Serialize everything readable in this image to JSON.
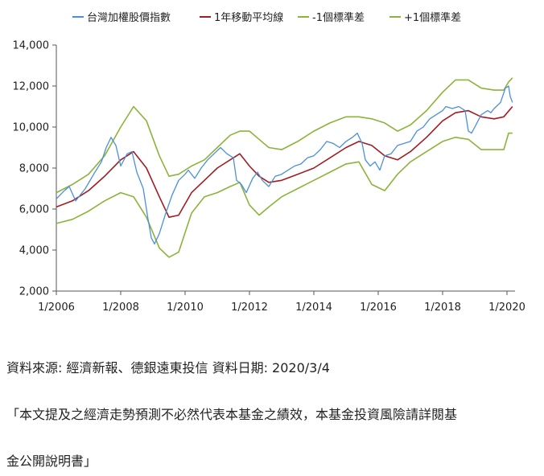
{
  "chart_data": {
    "type": "line",
    "title": "",
    "xlabel": "",
    "ylabel": "",
    "x_ticks": [
      "1/2006",
      "1/2008",
      "1/2010",
      "1/2012",
      "1/2014",
      "1/2016",
      "1/2018",
      "1/2020"
    ],
    "x_range": [
      2006.0,
      2020.25
    ],
    "y_ticks": [
      "2,000",
      "4,000",
      "6,000",
      "8,000",
      "10,000",
      "12,000",
      "14,000"
    ],
    "y_range": [
      2000,
      14000
    ],
    "grid": false,
    "legend_position": "top",
    "series": [
      {
        "name": "台灣加權股價指數",
        "color": "#4a90d9",
        "x": [
          2006.0,
          2006.25,
          2006.4,
          2006.6,
          2006.9,
          2007.2,
          2007.4,
          2007.55,
          2007.7,
          2007.85,
          2008.0,
          2008.2,
          2008.35,
          2008.5,
          2008.7,
          2008.85,
          2008.95,
          2009.05,
          2009.2,
          2009.4,
          2009.6,
          2009.8,
          2010.0,
          2010.1,
          2010.3,
          2010.5,
          2010.7,
          2010.9,
          2011.1,
          2011.3,
          2011.5,
          2011.6,
          2011.75,
          2011.9,
          2012.1,
          2012.25,
          2012.4,
          2012.6,
          2012.8,
          2013.0,
          2013.2,
          2013.4,
          2013.6,
          2013.8,
          2014.0,
          2014.2,
          2014.4,
          2014.6,
          2014.8,
          2015.0,
          2015.2,
          2015.35,
          2015.5,
          2015.6,
          2015.75,
          2015.9,
          2016.05,
          2016.2,
          2016.4,
          2016.6,
          2016.8,
          2017.0,
          2017.2,
          2017.4,
          2017.6,
          2017.8,
          2018.0,
          2018.1,
          2018.3,
          2018.5,
          2018.7,
          2018.8,
          2018.9,
          2019.0,
          2019.2,
          2019.4,
          2019.5,
          2019.6,
          2019.8,
          2019.95,
          2020.05,
          2020.1,
          2020.17
        ],
        "values": [
          6500,
          6900,
          7100,
          6400,
          7000,
          7800,
          8300,
          9000,
          9500,
          9100,
          8100,
          8700,
          8800,
          7800,
          7000,
          5500,
          4600,
          4300,
          4800,
          5800,
          6700,
          7400,
          7700,
          7900,
          7500,
          8000,
          8400,
          8700,
          9000,
          8700,
          8500,
          7400,
          7200,
          6800,
          7500,
          7800,
          7400,
          7100,
          7600,
          7700,
          7900,
          8100,
          8200,
          8500,
          8600,
          8900,
          9300,
          9200,
          9000,
          9300,
          9500,
          9700,
          9200,
          8400,
          8100,
          8300,
          7900,
          8600,
          8700,
          9100,
          9200,
          9300,
          9800,
          10000,
          10400,
          10600,
          10800,
          11000,
          10900,
          11000,
          10800,
          9800,
          9700,
          10000,
          10600,
          10800,
          10700,
          10900,
          11200,
          11900,
          12000,
          11500,
          11200
        ]
      },
      {
        "name": "1年移動平均線",
        "color": "#a01e23",
        "x": [
          2006.0,
          2006.5,
          2007.0,
          2007.5,
          2008.0,
          2008.4,
          2008.8,
          2009.2,
          2009.5,
          2009.8,
          2010.2,
          2010.6,
          2011.0,
          2011.4,
          2011.7,
          2012.0,
          2012.3,
          2012.6,
          2013.0,
          2013.5,
          2014.0,
          2014.5,
          2015.0,
          2015.4,
          2015.8,
          2016.2,
          2016.6,
          2017.0,
          2017.5,
          2018.0,
          2018.4,
          2018.8,
          2019.2,
          2019.6,
          2019.9,
          2020.17
        ],
        "values": [
          6100,
          6400,
          6900,
          7600,
          8400,
          8800,
          8000,
          6600,
          5600,
          5700,
          6800,
          7400,
          8000,
          8400,
          8700,
          8100,
          7600,
          7300,
          7400,
          7700,
          8000,
          8500,
          9000,
          9300,
          9100,
          8600,
          8400,
          8800,
          9500,
          10300,
          10700,
          10800,
          10500,
          10400,
          10500,
          11000
        ]
      },
      {
        "name": "-1個標準差",
        "color": "#8cb33a",
        "x": [
          2006.0,
          2006.5,
          2007.0,
          2007.5,
          2008.0,
          2008.4,
          2008.8,
          2009.2,
          2009.5,
          2009.8,
          2010.2,
          2010.6,
          2011.0,
          2011.4,
          2011.7,
          2012.0,
          2012.3,
          2012.6,
          2013.0,
          2013.5,
          2014.0,
          2014.5,
          2015.0,
          2015.4,
          2015.8,
          2016.2,
          2016.6,
          2017.0,
          2017.5,
          2018.0,
          2018.4,
          2018.8,
          2019.2,
          2019.6,
          2019.9,
          2020.05,
          2020.17
        ],
        "values": [
          5300,
          5500,
          5900,
          6400,
          6800,
          6600,
          5600,
          4100,
          3650,
          3900,
          5800,
          6600,
          6800,
          7100,
          7300,
          6200,
          5700,
          6100,
          6600,
          7000,
          7400,
          7800,
          8200,
          8300,
          7200,
          6900,
          7700,
          8300,
          8800,
          9300,
          9500,
          9400,
          8900,
          8900,
          8900,
          9700,
          9700
        ]
      },
      {
        "name": "+1個標準差",
        "color": "#8cb33a",
        "x": [
          2006.0,
          2006.5,
          2007.0,
          2007.5,
          2008.0,
          2008.4,
          2008.8,
          2009.2,
          2009.5,
          2009.8,
          2010.2,
          2010.6,
          2011.0,
          2011.4,
          2011.7,
          2012.0,
          2012.3,
          2012.6,
          2013.0,
          2013.5,
          2014.0,
          2014.5,
          2015.0,
          2015.4,
          2015.8,
          2016.2,
          2016.6,
          2017.0,
          2017.5,
          2018.0,
          2018.4,
          2018.8,
          2019.2,
          2019.6,
          2019.9,
          2020.05,
          2020.17
        ],
        "values": [
          6800,
          7200,
          7700,
          8600,
          10000,
          11000,
          10300,
          8600,
          7600,
          7700,
          8100,
          8400,
          9000,
          9600,
          9800,
          9800,
          9400,
          9000,
          8900,
          9300,
          9800,
          10200,
          10500,
          10500,
          10400,
          10200,
          9800,
          10100,
          10800,
          11700,
          12300,
          12300,
          11900,
          11800,
          11800,
          12200,
          12400
        ]
      }
    ]
  },
  "notes": {
    "source": "資料來源:  經濟新報、德銀遠東投信     資料日期: 2020/3/4",
    "disclaimer_line1": "「本文提及之經濟走勢預測不必然代表本基金之績效，本基金投資風險請詳閱基",
    "disclaimer_line2": "金公開說明書」"
  }
}
